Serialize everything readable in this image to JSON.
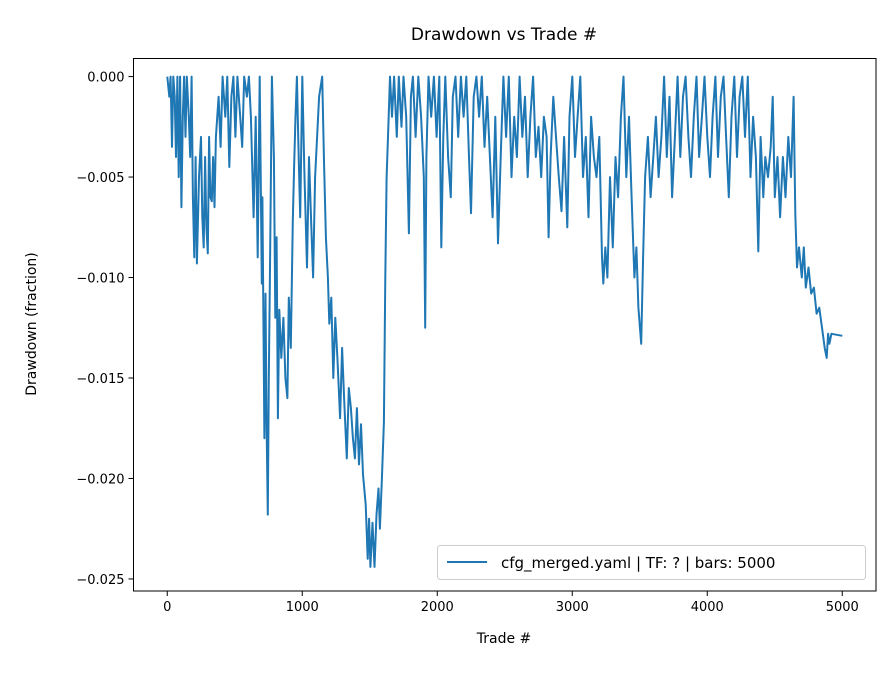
{
  "chart_data": {
    "type": "line",
    "title": "Drawdown vs Trade #",
    "xlabel": "Trade #",
    "ylabel": "Drawdown (fraction)",
    "xlim": [
      -250,
      5250
    ],
    "ylim": [
      -0.0256,
      0.0009
    ],
    "xticks": [
      0,
      1000,
      2000,
      3000,
      4000,
      5000
    ],
    "xtick_labels": [
      "0",
      "1000",
      "2000",
      "3000",
      "4000",
      "5000"
    ],
    "yticks": [
      0,
      -0.005,
      -0.01,
      -0.015,
      -0.02,
      -0.025
    ],
    "ytick_labels": [
      "0.000",
      "−0.005",
      "−0.010",
      "−0.015",
      "−0.020",
      "−0.025"
    ],
    "grid": false,
    "legend": {
      "position": "lower-right",
      "entries": [
        "cfg_merged.yaml | TF: ? | bars: 5000"
      ]
    },
    "series": [
      {
        "name": "cfg_merged.yaml | TF: ? | bars: 5000",
        "color": "#1f77b4",
        "points": [
          [
            0,
            0
          ],
          [
            15,
            -0.001
          ],
          [
            25,
            0
          ],
          [
            35,
            -0.0035
          ],
          [
            45,
            0
          ],
          [
            55,
            -0.001
          ],
          [
            65,
            -0.004
          ],
          [
            75,
            0
          ],
          [
            85,
            -0.005
          ],
          [
            95,
            0
          ],
          [
            105,
            -0.0065
          ],
          [
            115,
            -0.002
          ],
          [
            125,
            0
          ],
          [
            135,
            -0.003
          ],
          [
            145,
            0
          ],
          [
            160,
            -0.002
          ],
          [
            170,
            -0.004
          ],
          [
            180,
            0
          ],
          [
            190,
            -0.006
          ],
          [
            200,
            -0.009
          ],
          [
            210,
            -0.004
          ],
          [
            220,
            -0.0093
          ],
          [
            235,
            -0.005
          ],
          [
            250,
            -0.003
          ],
          [
            260,
            -0.007
          ],
          [
            270,
            -0.0085
          ],
          [
            280,
            -0.004
          ],
          [
            290,
            -0.0075
          ],
          [
            300,
            -0.0088
          ],
          [
            310,
            -0.003
          ],
          [
            320,
            -0.006
          ],
          [
            330,
            -0.0062
          ],
          [
            340,
            -0.004
          ],
          [
            350,
            -0.0065
          ],
          [
            360,
            -0.003
          ],
          [
            380,
            -0.001
          ],
          [
            395,
            -0.0035
          ],
          [
            410,
            0
          ],
          [
            430,
            -0.002
          ],
          [
            445,
            0
          ],
          [
            460,
            -0.0045
          ],
          [
            475,
            -0.001
          ],
          [
            490,
            0
          ],
          [
            505,
            -0.003
          ],
          [
            520,
            0
          ],
          [
            540,
            -0.002
          ],
          [
            555,
            -0.0035
          ],
          [
            570,
            0
          ],
          [
            590,
            -0.001
          ],
          [
            605,
            0
          ],
          [
            620,
            -0.002
          ],
          [
            640,
            -0.007
          ],
          [
            655,
            -0.002
          ],
          [
            670,
            -0.009
          ],
          [
            685,
            0
          ],
          [
            700,
            -0.0103
          ],
          [
            705,
            -0.006
          ],
          [
            712,
            -0.012
          ],
          [
            720,
            -0.018
          ],
          [
            728,
            -0.0108
          ],
          [
            735,
            -0.017
          ],
          [
            745,
            -0.0218
          ],
          [
            752,
            -0.015
          ],
          [
            760,
            -0.01
          ],
          [
            775,
            0
          ],
          [
            790,
            -0.004
          ],
          [
            800,
            -0.012
          ],
          [
            810,
            -0.008
          ],
          [
            820,
            -0.017
          ],
          [
            830,
            -0.0116
          ],
          [
            845,
            -0.014
          ],
          [
            860,
            -0.012
          ],
          [
            875,
            -0.015
          ],
          [
            890,
            -0.016
          ],
          [
            900,
            -0.011
          ],
          [
            915,
            -0.0135
          ],
          [
            930,
            -0.0072
          ],
          [
            940,
            -0.0045
          ],
          [
            950,
            -0.002
          ],
          [
            960,
            0
          ],
          [
            970,
            -0.003
          ],
          [
            985,
            -0.007
          ],
          [
            1000,
            0
          ],
          [
            1015,
            -0.0046
          ],
          [
            1035,
            -0.0095
          ],
          [
            1050,
            -0.004
          ],
          [
            1065,
            -0.007
          ],
          [
            1080,
            -0.01
          ],
          [
            1095,
            -0.005
          ],
          [
            1110,
            -0.003
          ],
          [
            1125,
            -0.001
          ],
          [
            1148,
            0
          ],
          [
            1160,
            -0.004
          ],
          [
            1175,
            -0.008
          ],
          [
            1190,
            -0.01
          ],
          [
            1200,
            -0.0123
          ],
          [
            1215,
            -0.011
          ],
          [
            1230,
            -0.015
          ],
          [
            1245,
            -0.012
          ],
          [
            1260,
            -0.014
          ],
          [
            1280,
            -0.017
          ],
          [
            1295,
            -0.0135
          ],
          [
            1310,
            -0.016
          ],
          [
            1330,
            -0.019
          ],
          [
            1345,
            -0.0155
          ],
          [
            1360,
            -0.0165
          ],
          [
            1375,
            -0.018
          ],
          [
            1390,
            -0.019
          ],
          [
            1405,
            -0.0165
          ],
          [
            1420,
            -0.0193
          ],
          [
            1435,
            -0.0173
          ],
          [
            1450,
            -0.0198
          ],
          [
            1470,
            -0.0213
          ],
          [
            1485,
            -0.024
          ],
          [
            1495,
            -0.022
          ],
          [
            1505,
            -0.0244
          ],
          [
            1520,
            -0.0222
          ],
          [
            1535,
            -0.0244
          ],
          [
            1550,
            -0.0218
          ],
          [
            1565,
            -0.0205
          ],
          [
            1575,
            -0.0225
          ],
          [
            1590,
            -0.02
          ],
          [
            1605,
            -0.0172
          ],
          [
            1615,
            -0.01
          ],
          [
            1625,
            -0.005
          ],
          [
            1635,
            -0.003
          ],
          [
            1650,
            0
          ],
          [
            1665,
            -0.002
          ],
          [
            1680,
            0
          ],
          [
            1700,
            -0.003
          ],
          [
            1715,
            0
          ],
          [
            1735,
            -0.0025
          ],
          [
            1750,
            0
          ],
          [
            1770,
            -0.002
          ],
          [
            1790,
            -0.0078
          ],
          [
            1805,
            -0.001
          ],
          [
            1820,
            0
          ],
          [
            1840,
            -0.003
          ],
          [
            1860,
            0
          ],
          [
            1880,
            -0.002
          ],
          [
            1900,
            -0.005
          ],
          [
            1911,
            -0.0125
          ],
          [
            1920,
            -0.004
          ],
          [
            1935,
            0
          ],
          [
            1955,
            -0.002
          ],
          [
            1975,
            0
          ],
          [
            1995,
            -0.003
          ],
          [
            2015,
            0
          ],
          [
            2030,
            -0.0085
          ],
          [
            2045,
            -0.003
          ],
          [
            2060,
            0
          ],
          [
            2080,
            -0.004
          ],
          [
            2100,
            -0.006
          ],
          [
            2115,
            -0.001
          ],
          [
            2135,
            0
          ],
          [
            2155,
            -0.003
          ],
          [
            2175,
            0
          ],
          [
            2195,
            -0.002
          ],
          [
            2215,
            0
          ],
          [
            2235,
            -0.004
          ],
          [
            2250,
            -0.0068
          ],
          [
            2270,
            -0.001
          ],
          [
            2290,
            0
          ],
          [
            2310,
            -0.002
          ],
          [
            2330,
            0
          ],
          [
            2350,
            -0.0035
          ],
          [
            2370,
            -0.001
          ],
          [
            2390,
            -0.004
          ],
          [
            2410,
            -0.007
          ],
          [
            2430,
            -0.002
          ],
          [
            2450,
            -0.0083
          ],
          [
            2470,
            -0.004
          ],
          [
            2490,
            0
          ],
          [
            2510,
            -0.003
          ],
          [
            2530,
            0
          ],
          [
            2550,
            -0.005
          ],
          [
            2570,
            -0.002
          ],
          [
            2590,
            -0.004
          ],
          [
            2610,
            0
          ],
          [
            2630,
            -0.003
          ],
          [
            2650,
            -0.001
          ],
          [
            2670,
            -0.005
          ],
          [
            2690,
            -0.002
          ],
          [
            2710,
            0
          ],
          [
            2730,
            -0.004
          ],
          [
            2750,
            -0.0025
          ],
          [
            2770,
            -0.005
          ],
          [
            2790,
            -0.002
          ],
          [
            2810,
            -0.003
          ],
          [
            2825,
            -0.008
          ],
          [
            2840,
            -0.004
          ],
          [
            2860,
            -0.001
          ],
          [
            2880,
            -0.003
          ],
          [
            2900,
            -0.005
          ],
          [
            2920,
            -0.0067
          ],
          [
            2940,
            -0.003
          ],
          [
            2963,
            -0.0075
          ],
          [
            2980,
            -0.002
          ],
          [
            3000,
            0
          ],
          [
            3020,
            -0.004
          ],
          [
            3040,
            -0.002
          ],
          [
            3060,
            0
          ],
          [
            3080,
            -0.005
          ],
          [
            3100,
            -0.003
          ],
          [
            3120,
            -0.007
          ],
          [
            3140,
            -0.002
          ],
          [
            3160,
            -0.004
          ],
          [
            3180,
            -0.005
          ],
          [
            3200,
            -0.003
          ],
          [
            3220,
            -0.009
          ],
          [
            3230,
            -0.0103
          ],
          [
            3245,
            -0.0085
          ],
          [
            3260,
            -0.01
          ],
          [
            3280,
            -0.005
          ],
          [
            3300,
            -0.0085
          ],
          [
            3320,
            -0.004
          ],
          [
            3340,
            -0.006
          ],
          [
            3360,
            -0.002
          ],
          [
            3380,
            0
          ],
          [
            3400,
            -0.005
          ],
          [
            3420,
            -0.002
          ],
          [
            3440,
            -0.006
          ],
          [
            3460,
            -0.01
          ],
          [
            3475,
            -0.0085
          ],
          [
            3490,
            -0.0115
          ],
          [
            3511,
            -0.0133
          ],
          [
            3525,
            -0.009
          ],
          [
            3540,
            -0.005
          ],
          [
            3560,
            -0.003
          ],
          [
            3580,
            -0.006
          ],
          [
            3600,
            -0.004
          ],
          [
            3620,
            -0.002
          ],
          [
            3640,
            -0.005
          ],
          [
            3660,
            -0.003
          ],
          [
            3680,
            0
          ],
          [
            3700,
            -0.004
          ],
          [
            3720,
            -0.001
          ],
          [
            3740,
            -0.006
          ],
          [
            3760,
            -0.003
          ],
          [
            3780,
            0
          ],
          [
            3800,
            -0.004
          ],
          [
            3820,
            -0.001
          ],
          [
            3840,
            0
          ],
          [
            3860,
            -0.003
          ],
          [
            3880,
            -0.005
          ],
          [
            3900,
            -0.002
          ],
          [
            3920,
            0
          ],
          [
            3940,
            -0.004
          ],
          [
            3960,
            -0.002
          ],
          [
            3980,
            0
          ],
          [
            4000,
            -0.003
          ],
          [
            4020,
            -0.005
          ],
          [
            4040,
            -0.002
          ],
          [
            4060,
            0
          ],
          [
            4080,
            -0.004
          ],
          [
            4100,
            -0.001
          ],
          [
            4120,
            0
          ],
          [
            4140,
            -0.003
          ],
          [
            4160,
            -0.006
          ],
          [
            4180,
            -0.002
          ],
          [
            4200,
            0
          ],
          [
            4220,
            -0.004
          ],
          [
            4240,
            -0.001
          ],
          [
            4260,
            0
          ],
          [
            4280,
            -0.003
          ],
          [
            4300,
            0
          ],
          [
            4320,
            -0.005
          ],
          [
            4340,
            -0.002
          ],
          [
            4360,
            -0.004
          ],
          [
            4378,
            -0.0087
          ],
          [
            4395,
            -0.003
          ],
          [
            4415,
            -0.006
          ],
          [
            4430,
            -0.004
          ],
          [
            4450,
            -0.005
          ],
          [
            4470,
            -0.0035
          ],
          [
            4485,
            -0.001
          ],
          [
            4500,
            -0.006
          ],
          [
            4520,
            -0.004
          ],
          [
            4540,
            -0.007
          ],
          [
            4560,
            -0.004
          ],
          [
            4580,
            -0.006
          ],
          [
            4600,
            -0.003
          ],
          [
            4620,
            -0.005
          ],
          [
            4640,
            -0.001
          ],
          [
            4652,
            -0.0068
          ],
          [
            4665,
            -0.0095
          ],
          [
            4680,
            -0.0085
          ],
          [
            4700,
            -0.01
          ],
          [
            4715,
            -0.0085
          ],
          [
            4730,
            -0.0105
          ],
          [
            4750,
            -0.0095
          ],
          [
            4770,
            -0.0108
          ],
          [
            4790,
            -0.0105
          ],
          [
            4810,
            -0.0118
          ],
          [
            4830,
            -0.0115
          ],
          [
            4850,
            -0.0125
          ],
          [
            4870,
            -0.0135
          ],
          [
            4885,
            -0.014
          ],
          [
            4895,
            -0.0128
          ],
          [
            4905,
            -0.0133
          ],
          [
            4920,
            -0.0128
          ],
          [
            5000,
            -0.0129
          ]
        ]
      }
    ]
  }
}
